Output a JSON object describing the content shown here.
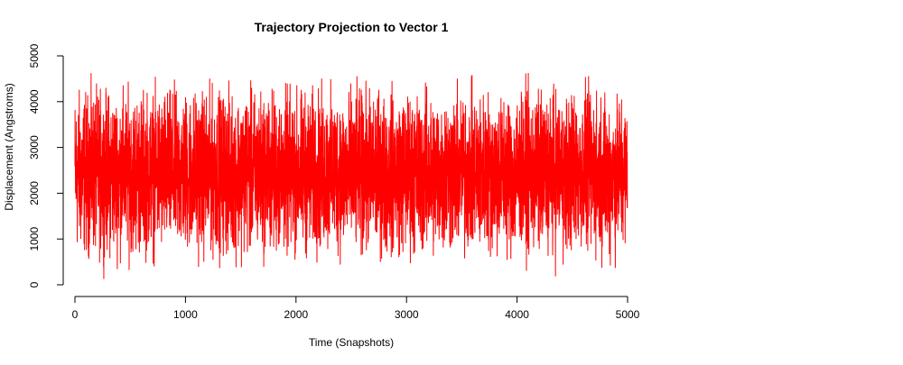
{
  "chart_data": {
    "type": "line",
    "title": "Trajectory Projection to Vector 1",
    "xlabel": "Time (Snapshots)",
    "ylabel": "Displacement (Angstroms)",
    "xlim": [
      0,
      5000
    ],
    "ylim": [
      0,
      5000
    ],
    "x_ticks": [
      "0",
      "1000",
      "2000",
      "3000",
      "4000",
      "5000"
    ],
    "y_ticks": [
      "0",
      "1000",
      "2000",
      "3000",
      "4000",
      "5000"
    ],
    "grid": false,
    "legend": "none",
    "series": [
      {
        "color": "#ff0000",
        "n_points": 5000,
        "y_min": 0,
        "y_max": 4880,
        "y_mean": 2450
      }
    ]
  }
}
